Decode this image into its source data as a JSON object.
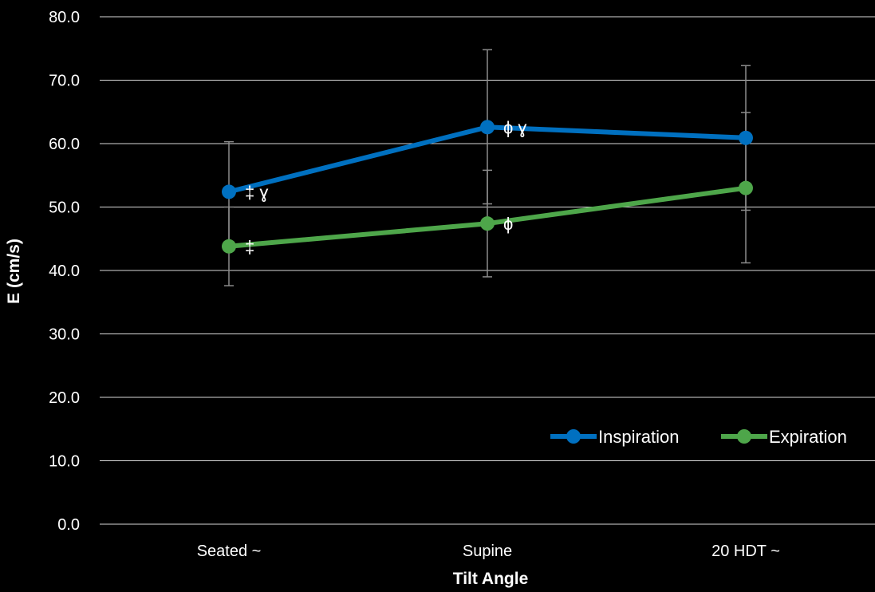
{
  "chart_data": {
    "type": "line",
    "title": "",
    "xlabel": "Tilt Angle",
    "ylabel": "E (cm/s)",
    "ylim": [
      0,
      80
    ],
    "yticks": [
      "0.0",
      "10.0",
      "20.0",
      "30.0",
      "40.0",
      "50.0",
      "60.0",
      "70.0",
      "80.0"
    ],
    "categories": [
      "Seated  ~",
      "Supine",
      "20 HDT  ~"
    ],
    "grid": true,
    "legend_position": "bottom-right",
    "series": [
      {
        "name": "Inspiration",
        "color": "#0070C0",
        "values": [
          52.4,
          62.6,
          60.9
        ],
        "error_low": [
          44.5,
          50.5,
          49.5
        ],
        "error_high": [
          60.3,
          74.8,
          72.3
        ],
        "annotations": [
          "‡ ɣ",
          "ϕ ɣ",
          ""
        ]
      },
      {
        "name": "Expiration",
        "color": "#4EA64A",
        "values": [
          43.8,
          47.4,
          53.0
        ],
        "error_low": [
          37.6,
          39.0,
          41.2
        ],
        "error_high": [
          50.0,
          55.8,
          64.9
        ],
        "annotations": [
          "‡",
          "ϕ",
          ""
        ]
      }
    ]
  }
}
